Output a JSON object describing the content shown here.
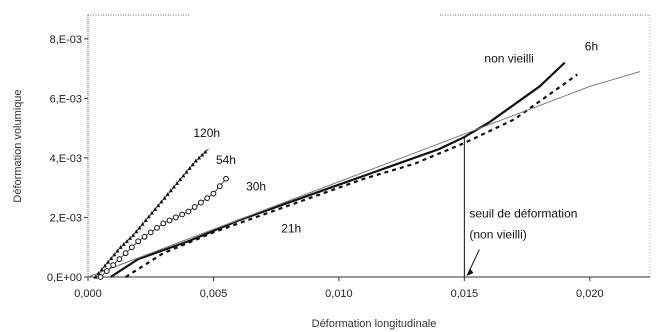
{
  "chart_data": {
    "type": "line",
    "xlabel": "Déformation longitudinale",
    "ylabel": "Déformation volumique",
    "xlim": [
      0,
      0.022
    ],
    "ylim": [
      0,
      0.0088
    ],
    "x_ticks": [
      0,
      0.005,
      0.01,
      0.015,
      0.02
    ],
    "x_tick_labels": [
      "0,000",
      "0,005",
      "0,010",
      "0,015",
      "0,020"
    ],
    "y_ticks": [
      0,
      0.002,
      0.004,
      0.006,
      0.008
    ],
    "y_tick_labels": [
      "0,E+00",
      "2,E-03",
      "4,E-03",
      "6,E-03",
      "8,E-03"
    ],
    "grid": false,
    "series": [
      {
        "name": "120h",
        "style": "triangle-markers",
        "x": [
          0.0003,
          0.0008,
          0.0013,
          0.0018,
          0.0023,
          0.0028,
          0.0033,
          0.0038,
          0.0043,
          0.0048
        ],
        "y": [
          0.0,
          0.0005,
          0.001,
          0.0014,
          0.0019,
          0.0024,
          0.0029,
          0.0034,
          0.0039,
          0.0043
        ]
      },
      {
        "name": "54h",
        "style": "circle-markers",
        "x": [
          0.0005,
          0.001,
          0.0015,
          0.002,
          0.0025,
          0.003,
          0.0035,
          0.004,
          0.0045,
          0.005,
          0.0055
        ],
        "y": [
          0.0,
          0.0004,
          0.0008,
          0.0012,
          0.0015,
          0.0018,
          0.002,
          0.0022,
          0.0025,
          0.0028,
          0.0033
        ]
      },
      {
        "name": "non vieilli",
        "style": "solid",
        "x": [
          0.0009,
          0.002,
          0.004,
          0.006,
          0.008,
          0.01,
          0.012,
          0.014,
          0.015,
          0.016,
          0.017,
          0.018,
          0.019
        ],
        "y": [
          0.0,
          0.0006,
          0.0012,
          0.0019,
          0.0025,
          0.0031,
          0.0037,
          0.0043,
          0.0047,
          0.0052,
          0.0058,
          0.0064,
          0.0072
        ]
      },
      {
        "name": "6h",
        "style": "dashed",
        "x": [
          0.0015,
          0.003,
          0.005,
          0.007,
          0.009,
          0.011,
          0.013,
          0.015,
          0.016,
          0.017,
          0.018,
          0.0195
        ],
        "y": [
          0.0,
          0.0008,
          0.0015,
          0.0021,
          0.0027,
          0.0033,
          0.0038,
          0.0045,
          0.0049,
          0.0053,
          0.0059,
          0.0068
        ]
      },
      {
        "name": "21h",
        "style": "thin-solid",
        "x": [
          0.0,
          0.005,
          0.01,
          0.015,
          0.02,
          0.022
        ],
        "y": [
          0.0,
          0.0016,
          0.0032,
          0.0048,
          0.0064,
          0.0069
        ]
      }
    ],
    "annotations": [
      {
        "text": "non vieilli",
        "x": 0.0158,
        "y": 0.0072
      },
      {
        "text": "6h",
        "x": 0.0198,
        "y": 0.0076
      },
      {
        "text": "120h",
        "x": 0.0042,
        "y": 0.0047
      },
      {
        "text": "54h",
        "x": 0.0051,
        "y": 0.0038
      },
      {
        "text": "30h",
        "x": 0.0063,
        "y": 0.0029
      },
      {
        "text": "21h",
        "x": 0.0077,
        "y": 0.0015
      },
      {
        "text": "seuil de déformation",
        "x": 0.0152,
        "y": 0.002
      },
      {
        "text": "(non vieilli)",
        "x": 0.0152,
        "y": 0.0013
      }
    ],
    "threshold": {
      "x": 0.015,
      "y": 0.0047
    }
  }
}
